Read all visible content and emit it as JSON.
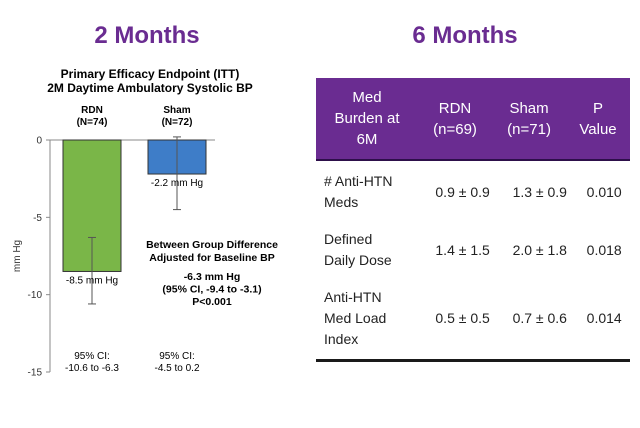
{
  "left_heading": "2 Months",
  "right_heading": "6 Months",
  "chart_data": {
    "type": "bar",
    "title": "Primary Efficacy Endpoint (ITT)",
    "subtitle": "2M Daytime Ambulatory Systolic BP",
    "ylabel": "mm Hg",
    "ylim": [
      -15,
      0
    ],
    "yticks": [
      0,
      -5,
      -10,
      -15
    ],
    "ytick_labels": [
      "0",
      "-5",
      "-10",
      "-15"
    ],
    "grid": false,
    "categories": [
      "RDN",
      "Sham"
    ],
    "category_labels": [
      "RDN\n(N=74)",
      "Sham\n(N=72)"
    ],
    "values": [
      -8.5,
      -2.2
    ],
    "value_labels": [
      "-8.5 mm Hg",
      "-2.2 mm Hg"
    ],
    "colors": [
      "#7ab648",
      "#3e7dc8"
    ],
    "error_low": [
      -10.6,
      -4.5
    ],
    "error_high": [
      -6.3,
      0.2
    ],
    "ci_labels": [
      "95% CI:\n-10.6 to -6.3",
      "95% CI:\n-4.5 to 0.2"
    ],
    "annotation": {
      "lines_bold": [
        "Between Group Difference",
        "Adjusted for Baseline BP"
      ],
      "lines": [
        "-6.3 mm Hg",
        "(95% CI, -9.4 to -3.1)",
        "P<0.001"
      ]
    }
  },
  "table": {
    "header_color": "#6a2c91",
    "headers": [
      "Med\nBurden at\n6M",
      "RDN\n(n=69)",
      "Sham\n(n=71)",
      "P\nValue"
    ],
    "rows": [
      [
        "# Anti-HTN\nMeds",
        "0.9 ± 0.9",
        "1.3 ± 0.9",
        "0.010"
      ],
      [
        "Defined\nDaily Dose",
        "1.4 ± 1.5",
        "2.0 ± 1.8",
        "0.018"
      ],
      [
        "Anti-HTN\nMed Load\nIndex",
        "0.5 ± 0.5",
        "0.7 ± 0.6",
        "0.014"
      ]
    ]
  }
}
